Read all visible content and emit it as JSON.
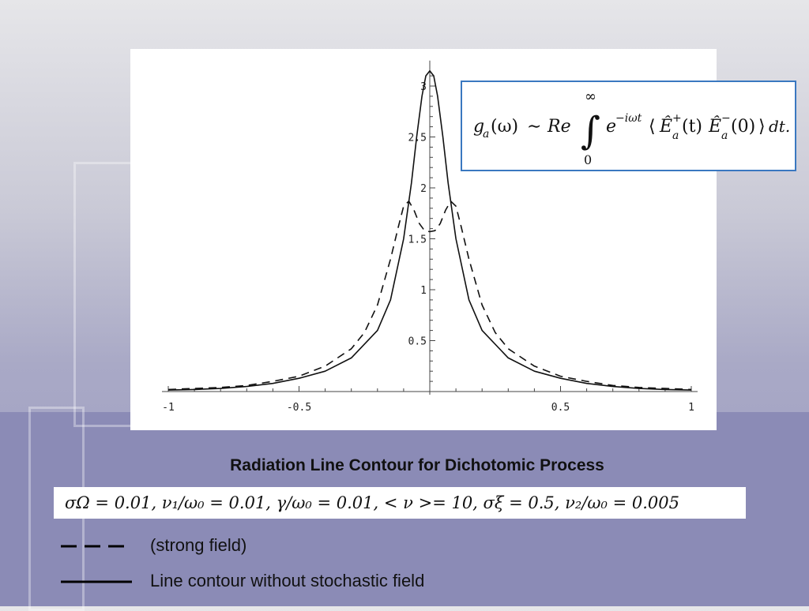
{
  "chart_data": {
    "type": "line",
    "title": "Radiation Line Contour for Dichotomic Process",
    "xlim": [
      -1,
      1
    ],
    "ylim": [
      0,
      3.25
    ],
    "xticks": [
      "-1",
      "-0.5",
      "0.5",
      "1"
    ],
    "yticks": [
      "0.5",
      "1",
      "1.5",
      "2",
      "2.5",
      "3"
    ],
    "series": [
      {
        "name": "(strong field)",
        "style": "dashed",
        "x": [
          -1,
          -0.9,
          -0.8,
          -0.7,
          -0.6,
          -0.5,
          -0.4,
          -0.3,
          -0.25,
          -0.2,
          -0.15,
          -0.12,
          -0.1,
          -0.08,
          -0.06,
          -0.04,
          -0.02,
          0,
          0.02,
          0.04,
          0.06,
          0.08,
          0.1,
          0.12,
          0.15,
          0.2,
          0.25,
          0.3,
          0.4,
          0.5,
          0.6,
          0.7,
          0.8,
          0.9,
          1
        ],
        "y": [
          0.02,
          0.03,
          0.04,
          0.06,
          0.1,
          0.15,
          0.25,
          0.42,
          0.58,
          0.85,
          1.3,
          1.62,
          1.82,
          1.87,
          1.78,
          1.65,
          1.58,
          1.57,
          1.58,
          1.65,
          1.78,
          1.87,
          1.82,
          1.62,
          1.3,
          0.85,
          0.58,
          0.42,
          0.25,
          0.15,
          0.1,
          0.06,
          0.04,
          0.03,
          0.02
        ]
      },
      {
        "name": "Line contour without stochastic field",
        "style": "solid",
        "x": [
          -1,
          -0.9,
          -0.8,
          -0.7,
          -0.6,
          -0.5,
          -0.4,
          -0.3,
          -0.2,
          -0.15,
          -0.1,
          -0.07,
          -0.05,
          -0.03,
          -0.015,
          0,
          0.015,
          0.03,
          0.05,
          0.07,
          0.1,
          0.15,
          0.2,
          0.3,
          0.4,
          0.5,
          0.6,
          0.7,
          0.8,
          0.9,
          1
        ],
        "y": [
          0.015,
          0.02,
          0.03,
          0.05,
          0.08,
          0.13,
          0.2,
          0.33,
          0.6,
          0.9,
          1.5,
          2.05,
          2.5,
          2.9,
          3.1,
          3.15,
          3.1,
          2.9,
          2.5,
          2.05,
          1.5,
          0.9,
          0.6,
          0.33,
          0.2,
          0.13,
          0.08,
          0.05,
          0.03,
          0.02,
          0.015
        ]
      }
    ]
  },
  "formula": {
    "lhs": "g",
    "lhs_sub": "a",
    "lhs_arg": "(ω)",
    "sim": "∼",
    "re": "Re",
    "upper_limit": "∞",
    "lower_limit": "0",
    "integral": "∫",
    "exp_base": "e",
    "exp_power": "−iωt",
    "angle_open": "⟨",
    "E": "Ê",
    "sub_a": "a",
    "sup_plus": "+",
    "sup_minus": "−",
    "arg_t": "(t)",
    "arg_0": "(0)",
    "angle_close": "⟩",
    "dt": "dt."
  },
  "caption": "Radiation Line Contour for Dichotomic Process",
  "parameters": "σΩ = 0.01, ν₁/ω₀ = 0.01, γ/ω₀ = 0.01, < ν >= 10, σξ = 0.5, ν₂/ω₀ = 0.005",
  "legend": [
    {
      "label": "(strong field)",
      "style": "dashed"
    },
    {
      "label": "Line contour without stochastic field",
      "style": "solid"
    }
  ]
}
